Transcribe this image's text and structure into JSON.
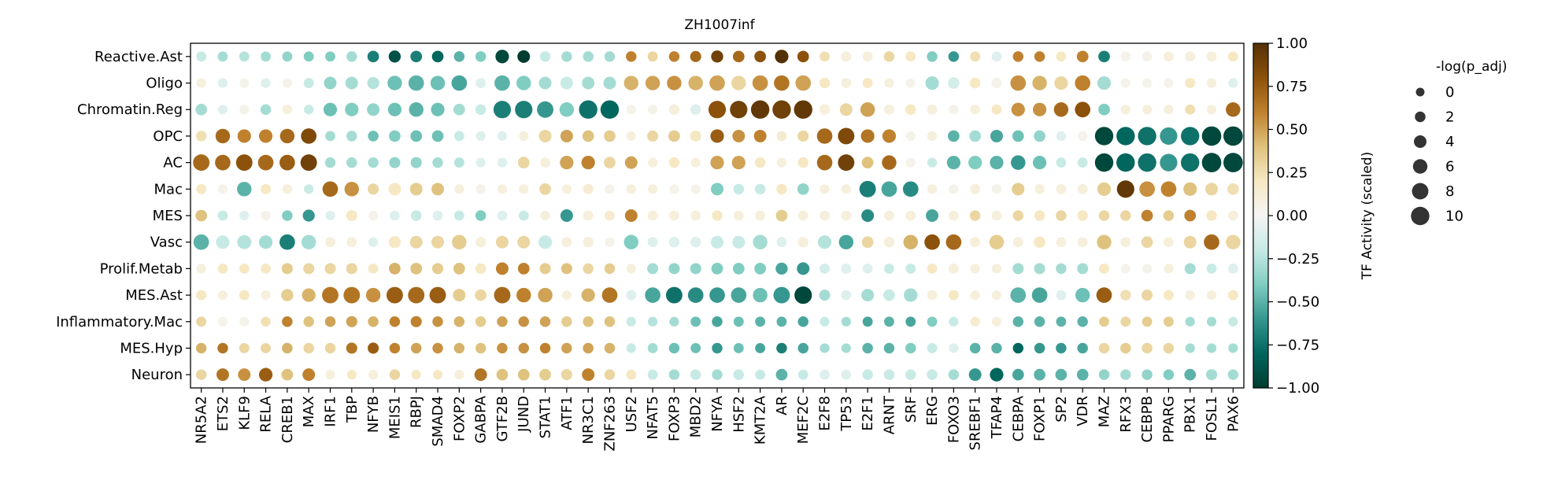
{
  "chart_data": {
    "type": "dotplot",
    "title": "ZH1007inf",
    "columns": [
      "NR5A2",
      "ETS2",
      "KLF9",
      "RELA",
      "CREB1",
      "MAX",
      "IRF1",
      "TBP",
      "NFYB",
      "MEIS1",
      "RBPJ",
      "SMAD4",
      "FOXP2",
      "GABPA",
      "GTF2B",
      "JUND",
      "STAT1",
      "ATF1",
      "NR3C1",
      "ZNF263",
      "USF2",
      "NFAT5",
      "FOXP3",
      "MBD2",
      "NFYA",
      "HSF2",
      "KMT2A",
      "AR",
      "MEF2C",
      "E2F8",
      "TP53",
      "E2F1",
      "ARNT",
      "SRF",
      "ERG",
      "FOXO3",
      "SREBF1",
      "TFAP4",
      "CEBPA",
      "FOXP1",
      "SP2",
      "VDR",
      "MAZ",
      "RFX3",
      "CEBPB",
      "PPARG",
      "PBX1",
      "FOSL1",
      "PAX6"
    ],
    "rows": [
      "Reactive.Ast",
      "Oligo",
      "Chromatin.Reg",
      "OPC",
      "AC",
      "Mac",
      "MES",
      "Vasc",
      "Prolif.Metab",
      "MES.Ast",
      "Inflammatory.Mac",
      "MES.Hyp",
      "Neuron"
    ],
    "activity": [
      [
        -0.2,
        -0.3,
        -0.25,
        -0.3,
        -0.35,
        -0.4,
        -0.4,
        -0.3,
        -0.7,
        -0.9,
        -0.7,
        -0.8,
        -0.5,
        -0.4,
        -0.95,
        -1.0,
        -0.2,
        -0.3,
        -0.3,
        -0.3,
        0.6,
        0.3,
        0.6,
        0.7,
        0.9,
        0.7,
        0.8,
        1.0,
        0.8,
        0.25,
        0.1,
        0.1,
        0.3,
        0.2,
        -0.4,
        -0.6,
        0.25,
        -0.1,
        0.6,
        0.6,
        0.2,
        0.6,
        -0.7,
        0.05,
        0.05,
        0.1,
        0.1,
        0.1,
        0.2
      ],
      [
        0.1,
        -0.1,
        0.05,
        -0.1,
        0.05,
        -0.2,
        -0.35,
        -0.3,
        -0.25,
        -0.45,
        -0.5,
        -0.45,
        -0.55,
        -0.1,
        -0.5,
        -0.4,
        -0.3,
        -0.2,
        -0.3,
        -0.3,
        0.45,
        0.5,
        0.55,
        0.45,
        0.5,
        0.3,
        0.55,
        0.65,
        0.5,
        0.2,
        0.1,
        0.2,
        0.1,
        0.05,
        -0.3,
        -0.15,
        0.2,
        0.05,
        0.55,
        0.45,
        0.3,
        0.6,
        -0.3,
        0.05,
        0.05,
        0.05,
        0.2,
        0.1,
        -0.1
      ],
      [
        -0.3,
        -0.1,
        0.05,
        -0.3,
        0.1,
        -0.2,
        -0.45,
        -0.4,
        -0.35,
        -0.45,
        -0.5,
        -0.45,
        -0.3,
        -0.2,
        -0.7,
        -0.7,
        -0.6,
        -0.4,
        -0.75,
        -0.8,
        0.05,
        0.05,
        0.1,
        -0.1,
        0.8,
        0.9,
        0.95,
        0.9,
        0.95,
        0.1,
        0.3,
        0.5,
        0.1,
        0.2,
        0.1,
        0.05,
        0.1,
        0.2,
        0.55,
        0.55,
        0.7,
        0.8,
        -0.4,
        0.1,
        0.1,
        0.1,
        0.25,
        0.1,
        0.7
      ],
      [
        0.25,
        0.7,
        0.6,
        0.6,
        0.7,
        0.85,
        -0.3,
        -0.3,
        -0.45,
        -0.4,
        -0.45,
        -0.45,
        -0.2,
        -0.1,
        -0.1,
        0.1,
        0.3,
        0.5,
        0.4,
        0.35,
        0.1,
        0.3,
        0.35,
        0.2,
        0.75,
        0.55,
        0.6,
        0.15,
        0.3,
        0.7,
        0.85,
        0.65,
        0.6,
        0.05,
        0.1,
        -0.5,
        -0.3,
        -0.55,
        -0.45,
        -0.35,
        -0.1,
        0.05,
        -0.95,
        -0.8,
        -0.75,
        -0.6,
        -0.75,
        -0.95,
        -0.95
      ],
      [
        0.7,
        0.7,
        0.8,
        0.7,
        0.75,
        0.9,
        -0.3,
        -0.3,
        -0.3,
        -0.35,
        -0.35,
        -0.3,
        -0.25,
        -0.1,
        -0.1,
        0.3,
        0.1,
        0.5,
        0.6,
        0.3,
        0.5,
        0.1,
        0.2,
        0.1,
        0.5,
        0.5,
        0.2,
        0.1,
        0.2,
        0.7,
        0.9,
        0.4,
        0.7,
        0.05,
        -0.2,
        -0.5,
        -0.4,
        -0.5,
        -0.6,
        -0.45,
        -0.2,
        -0.2,
        -0.95,
        -0.8,
        -0.75,
        -0.6,
        -0.75,
        -0.95,
        -0.95
      ],
      [
        0.2,
        0.05,
        -0.5,
        0.2,
        0.1,
        -0.2,
        0.7,
        0.55,
        0.3,
        0.2,
        0.35,
        0.4,
        0.1,
        0.05,
        0.1,
        0.1,
        0.3,
        0.1,
        0.15,
        0.05,
        0.1,
        0.1,
        0.05,
        0.05,
        -0.4,
        -0.2,
        -0.2,
        0.2,
        -0.35,
        0.1,
        0.1,
        -0.7,
        -0.55,
        -0.65,
        0.1,
        0.05,
        0.1,
        0.05,
        0.35,
        0.1,
        0.1,
        0.1,
        0.35,
        0.95,
        0.55,
        0.6,
        0.4,
        0.3,
        0.25
      ],
      [
        0.4,
        -0.2,
        -0.1,
        0.05,
        -0.4,
        -0.6,
        -0.1,
        0.2,
        0.05,
        -0.1,
        -0.2,
        -0.1,
        -0.2,
        -0.4,
        -0.1,
        -0.2,
        0.1,
        -0.6,
        0.1,
        0.15,
        0.6,
        0.1,
        0.1,
        0.1,
        0.2,
        0.1,
        0.1,
        0.35,
        0.1,
        0.1,
        0.1,
        -0.65,
        0.1,
        0.1,
        -0.55,
        0.1,
        0.3,
        0.1,
        0.3,
        0.2,
        0.3,
        0.2,
        0.3,
        0.3,
        0.6,
        0.35,
        0.6,
        0.2,
        0.1
      ],
      [
        -0.5,
        -0.2,
        -0.25,
        -0.3,
        -0.7,
        -0.3,
        0.1,
        0.1,
        -0.1,
        0.2,
        0.3,
        0.3,
        0.35,
        0.1,
        0.3,
        0.3,
        -0.2,
        0.1,
        0.1,
        0.05,
        -0.4,
        -0.1,
        -0.1,
        -0.1,
        -0.2,
        -0.2,
        -0.3,
        -0.1,
        0.1,
        -0.25,
        -0.55,
        0.3,
        0.1,
        0.45,
        0.8,
        0.7,
        0.1,
        0.35,
        0.1,
        0.2,
        0.1,
        0.1,
        0.4,
        0.1,
        0.3,
        0.1,
        0.3,
        0.7,
        0.3
      ],
      [
        0.1,
        0.2,
        0.2,
        0.2,
        0.35,
        0.3,
        0.3,
        0.3,
        0.2,
        0.45,
        0.4,
        0.35,
        0.4,
        0.2,
        0.6,
        0.6,
        0.35,
        0.4,
        0.3,
        0.35,
        0.1,
        -0.3,
        -0.35,
        -0.35,
        -0.4,
        -0.4,
        -0.4,
        -0.55,
        -0.6,
        -0.15,
        -0.1,
        -0.1,
        -0.2,
        -0.2,
        0.2,
        0.1,
        0.1,
        0.1,
        -0.3,
        -0.3,
        -0.3,
        -0.3,
        0.2,
        0.05,
        0.05,
        0.1,
        -0.3,
        -0.2,
        -0.1
      ],
      [
        0.2,
        0.1,
        0.2,
        0.1,
        0.35,
        0.45,
        0.65,
        0.65,
        0.55,
        0.75,
        0.7,
        0.75,
        0.35,
        0.3,
        0.7,
        0.6,
        0.5,
        0.1,
        0.45,
        0.65,
        -0.1,
        -0.55,
        -0.75,
        -0.65,
        -0.6,
        -0.55,
        -0.45,
        -0.6,
        -0.95,
        -0.3,
        -0.1,
        -0.3,
        -0.2,
        -0.3,
        0.1,
        0.2,
        0.1,
        0.1,
        -0.5,
        -0.55,
        -0.1,
        -0.45,
        0.75,
        0.25,
        0.3,
        0.2,
        0.1,
        0.1,
        0.2
      ],
      [
        0.3,
        0.05,
        0.05,
        0.25,
        0.6,
        0.4,
        0.5,
        0.5,
        0.45,
        0.6,
        0.6,
        0.55,
        0.45,
        0.35,
        0.5,
        0.55,
        0.5,
        0.35,
        0.4,
        0.4,
        -0.2,
        -0.25,
        -0.3,
        -0.45,
        -0.55,
        -0.45,
        -0.5,
        -0.5,
        -0.55,
        -0.2,
        -0.3,
        -0.55,
        -0.5,
        -0.55,
        -0.4,
        -0.2,
        0.15,
        0.1,
        -0.5,
        -0.5,
        -0.5,
        -0.5,
        0.35,
        0.3,
        0.35,
        0.35,
        -0.3,
        -0.3,
        -0.2
      ],
      [
        0.45,
        0.65,
        0.3,
        0.3,
        0.45,
        0.3,
        0.3,
        0.65,
        0.75,
        0.6,
        0.5,
        0.55,
        0.45,
        0.4,
        0.55,
        0.55,
        0.6,
        0.5,
        0.5,
        0.45,
        -0.2,
        -0.3,
        -0.45,
        -0.45,
        -0.6,
        -0.45,
        -0.55,
        -0.7,
        -0.55,
        -0.3,
        -0.3,
        -0.5,
        -0.5,
        -0.4,
        -0.2,
        -0.1,
        -0.5,
        -0.5,
        -0.8,
        -0.6,
        -0.6,
        -0.55,
        0.3,
        0.35,
        0.3,
        0.3,
        -0.3,
        -0.3,
        -0.3
      ],
      [
        0.3,
        0.65,
        0.55,
        0.75,
        0.4,
        0.6,
        0.1,
        0.2,
        0.1,
        0.3,
        0.2,
        0.2,
        0.1,
        0.65,
        0.4,
        0.4,
        0.35,
        0.3,
        0.6,
        0.3,
        0.2,
        -0.2,
        -0.3,
        -0.2,
        -0.3,
        -0.2,
        -0.2,
        -0.5,
        -0.2,
        -0.1,
        -0.1,
        -0.2,
        -0.2,
        -0.2,
        -0.2,
        -0.3,
        -0.6,
        -0.8,
        -0.55,
        -0.5,
        -0.5,
        -0.5,
        -0.35,
        -0.3,
        -0.35,
        -0.4,
        -0.5,
        -0.3,
        -0.3
      ]
    ],
    "significance": [
      [
        1.5,
        1.5,
        1.5,
        1.5,
        1.5,
        1.5,
        1.5,
        2,
        3,
        3.5,
        3,
        3,
        2,
        2,
        5,
        4,
        2,
        2,
        2,
        2,
        2,
        1.5,
        2,
        2.5,
        3.5,
        3,
        3,
        5,
        3,
        1.5,
        1.5,
        1.5,
        2,
        1.5,
        2,
        2,
        1.5,
        1.5,
        2,
        2,
        1.5,
        3,
        3,
        1.5,
        1.5,
        1.5,
        1.5,
        1.5,
        1.5
      ],
      [
        1,
        1,
        1,
        1,
        1,
        1.5,
        4,
        4,
        3.5,
        6,
        7,
        6,
        7,
        1.5,
        7,
        6,
        4,
        4,
        4,
        4,
        6,
        6,
        6,
        6,
        7,
        6,
        7,
        7,
        7,
        2,
        1.5,
        1.5,
        1,
        1,
        5,
        3,
        2,
        2,
        7,
        6,
        5,
        7,
        5,
        1,
        1,
        1,
        1.5,
        1,
        1
      ],
      [
        3,
        1,
        1,
        2,
        1,
        1,
        5,
        5,
        4,
        5,
        6,
        5,
        3,
        2,
        9,
        9,
        8,
        6,
        10,
        10,
        1,
        1,
        2,
        2,
        9,
        9,
        10,
        10,
        10,
        2,
        4,
        6,
        1.5,
        2,
        1.5,
        1,
        1,
        1.5,
        5,
        5,
        6,
        7,
        3,
        1,
        1,
        1,
        1.5,
        1,
        6
      ],
      [
        2,
        6,
        5,
        5,
        6,
        7,
        1.5,
        2,
        2,
        3,
        3,
        3,
        1.5,
        1,
        1,
        1,
        4,
        4,
        3,
        3,
        1,
        2.5,
        3,
        2.5,
        5,
        4,
        4,
        1.5,
        2.5,
        7,
        8,
        5,
        5,
        1,
        1,
        3,
        3,
        4,
        3,
        3,
        1,
        1,
        10,
        10,
        10,
        9,
        10,
        11,
        11
      ],
      [
        8,
        7,
        8,
        7,
        7,
        8,
        2,
        2,
        2,
        2.5,
        2.5,
        2,
        1.5,
        1,
        1,
        3,
        1.5,
        5,
        5,
        3,
        4,
        1,
        2,
        1,
        5,
        5,
        2,
        1,
        2,
        7,
        8,
        3,
        6,
        1,
        1,
        5,
        5,
        5,
        6,
        5,
        1.5,
        1.5,
        10,
        10,
        10,
        9,
        10,
        11,
        11
      ],
      [
        1.5,
        1,
        6,
        1.5,
        1,
        1,
        7,
        6,
        2.5,
        4,
        4,
        4,
        1,
        1,
        1,
        1,
        3,
        1,
        1.5,
        1,
        1,
        1,
        1,
        1,
        4,
        2,
        2,
        2,
        3,
        1,
        1,
        8,
        7,
        7,
        1,
        1,
        1.5,
        1,
        4,
        1.5,
        1.5,
        1.5,
        5,
        9,
        7,
        7,
        5,
        4,
        3
      ],
      [
        3,
        1.5,
        1,
        1,
        2,
        3.5,
        1,
        2.5,
        1,
        1.5,
        2,
        1.5,
        1.5,
        2,
        1.5,
        1.5,
        1,
        4,
        1.5,
        1.5,
        4,
        1.5,
        1.5,
        1.5,
        2,
        1.5,
        1.5,
        3,
        1.5,
        1.5,
        1.5,
        4,
        1.5,
        1.5,
        4,
        1.5,
        2,
        1.5,
        2,
        2,
        2,
        2,
        2,
        2,
        3,
        2,
        3,
        2,
        1.5
      ],
      [
        7,
        5,
        5.5,
        5,
        7,
        6,
        1.5,
        1.5,
        1,
        3.5,
        4,
        4,
        6,
        2,
        4,
        4,
        5,
        1.5,
        2,
        1,
        6,
        1.5,
        2,
        2,
        4,
        4,
        6,
        1.5,
        2,
        5,
        6,
        3,
        2,
        6,
        7,
        7,
        1.5,
        6,
        1.5,
        3,
        1.5,
        1.5,
        6,
        1.5,
        3,
        1.5,
        4,
        7,
        6
      ],
      [
        1,
        1.5,
        1.5,
        1.5,
        2.5,
        2.5,
        2.5,
        2.5,
        1.5,
        3,
        3,
        2.5,
        3,
        2,
        4,
        3,
        2.5,
        2.5,
        2,
        2,
        1,
        2.5,
        2.5,
        2.5,
        3,
        3,
        3,
        3.5,
        4,
        1.5,
        1.5,
        1.5,
        1.5,
        1.5,
        1.5,
        1.5,
        1,
        1,
        2.5,
        2.5,
        2,
        2.5,
        1.5,
        1,
        1,
        1,
        2.5,
        1.5,
        1.5
      ],
      [
        1.5,
        1,
        1.5,
        1,
        3.5,
        5,
        8,
        8,
        6,
        8,
        8,
        8,
        4,
        3,
        8,
        6,
        6,
        1,
        5,
        7,
        1.5,
        7,
        8,
        7,
        7,
        7,
        6,
        8,
        9,
        2.5,
        1.5,
        4,
        3,
        5,
        1.5,
        1.5,
        1,
        1,
        7,
        7,
        1.5,
        6,
        7,
        2,
        2.5,
        1.5,
        1,
        1,
        1.5
      ],
      [
        1.5,
        1,
        1,
        1,
        2,
        2,
        2,
        2.5,
        2,
        2,
        2.5,
        2,
        2,
        2,
        2,
        2,
        2,
        2,
        2,
        2,
        1,
        1,
        1,
        1.5,
        2,
        1.5,
        1.5,
        1.5,
        2,
        1,
        1,
        1.5,
        1.5,
        1.5,
        1.5,
        1,
        1,
        1,
        2,
        2,
        1.5,
        2,
        1.5,
        1.5,
        1.5,
        1.5,
        1,
        1,
        1
      ],
      [
        2,
        2,
        1.5,
        1.5,
        2,
        2,
        2,
        2.5,
        2.5,
        2,
        2,
        2,
        2,
        2,
        2,
        2,
        2,
        2,
        2,
        2,
        1,
        1.5,
        2,
        1.5,
        2,
        1.5,
        1.5,
        2,
        2,
        1,
        1,
        2,
        2,
        2,
        1.5,
        1,
        2,
        2,
        2,
        2,
        2,
        2,
        2,
        2,
        2,
        2,
        1,
        1,
        1
      ],
      [
        2,
        4,
        4,
        5,
        3,
        4,
        1,
        1,
        1,
        2,
        1,
        1,
        1,
        4,
        3,
        3,
        3,
        2.5,
        4,
        2,
        1.5,
        1.5,
        2,
        2,
        2,
        2,
        1.5,
        3,
        1.5,
        1.5,
        1.5,
        2,
        2,
        2,
        2,
        2,
        4,
        5,
        3,
        3,
        3,
        3,
        2,
        2,
        2,
        2,
        3,
        2.5,
        2
      ]
    ],
    "colorbar": {
      "label": "TF Activity (scaled)",
      "min": -1.0,
      "max": 1.0,
      "ticks": [
        "1.00",
        "0.75",
        "0.50",
        "0.25",
        "0.00",
        "−0.25",
        "−0.50",
        "−0.75",
        "−1.00"
      ],
      "tick_values": [
        1.0,
        0.75,
        0.5,
        0.25,
        0.0,
        -0.25,
        -0.5,
        -0.75,
        -1.0
      ],
      "colors": [
        "#003c30",
        "#01665e",
        "#35978f",
        "#80cdc1",
        "#c7eae5",
        "#f5f5f5",
        "#f6e8c3",
        "#dfc27d",
        "#bf812d",
        "#8c510a",
        "#543005"
      ]
    },
    "size_legend": {
      "title": "-log(p_adj)",
      "labels": [
        "0",
        "2",
        "4",
        "6",
        "8",
        "10"
      ],
      "values": [
        0,
        2,
        4,
        6,
        8,
        10
      ]
    }
  }
}
